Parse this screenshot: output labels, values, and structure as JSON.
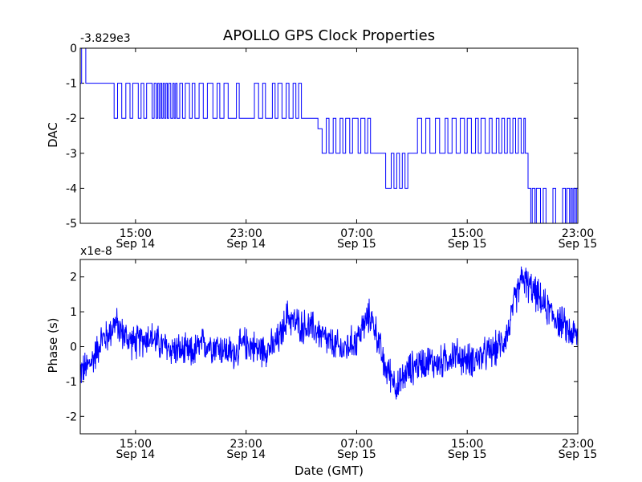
{
  "figure": {
    "title": "APOLLO GPS Clock Properties",
    "shared_xlabel": "Date (GMT)",
    "background": "#ffffff",
    "line_color": "#0000ff"
  },
  "chart_data": [
    {
      "type": "line",
      "ylabel": "DAC",
      "offset_text": "-3.829e3",
      "xlim": [
        0,
        36
      ],
      "ylim": [
        -5,
        0
      ],
      "x_ticks": [
        {
          "x": 4,
          "time": "15:00",
          "date": "Sep 14"
        },
        {
          "x": 12,
          "time": "23:00",
          "date": "Sep 14"
        },
        {
          "x": 20,
          "time": "07:00",
          "date": "Sep 15"
        },
        {
          "x": 28,
          "time": "15:00",
          "date": "Sep 15"
        },
        {
          "x": 36,
          "time": "23:00",
          "date": "Sep 15"
        }
      ],
      "y_ticks": [
        0,
        -1,
        -2,
        -3,
        -4,
        -5
      ],
      "y_tick_labels": [
        "0",
        "-1",
        "-2",
        "-3",
        "-4",
        "-5"
      ],
      "series": [
        {
          "step_points": [
            [
              0.0,
              -1
            ],
            [
              0.1,
              0
            ],
            [
              0.4,
              -1
            ],
            [
              2.2,
              -1
            ],
            [
              2.45,
              -2
            ],
            [
              2.7,
              -1
            ],
            [
              3.0,
              -2
            ],
            [
              3.3,
              -1
            ],
            [
              3.6,
              -2
            ],
            [
              3.8,
              -1
            ],
            [
              4.2,
              -2
            ],
            [
              4.4,
              -1
            ],
            [
              4.6,
              -2
            ],
            [
              4.8,
              -1
            ],
            [
              5.2,
              -2
            ],
            [
              5.35,
              -1
            ],
            [
              5.5,
              -2
            ],
            [
              5.6,
              -1
            ],
            [
              5.7,
              -2
            ],
            [
              5.8,
              -1
            ],
            [
              5.9,
              -2
            ],
            [
              6.0,
              -1
            ],
            [
              6.1,
              -2
            ],
            [
              6.2,
              -1
            ],
            [
              6.3,
              -2
            ],
            [
              6.4,
              -1
            ],
            [
              6.55,
              -2
            ],
            [
              6.7,
              -1
            ],
            [
              6.8,
              -2
            ],
            [
              6.9,
              -1
            ],
            [
              7.0,
              -2
            ],
            [
              7.2,
              -1
            ],
            [
              7.4,
              -2
            ],
            [
              7.6,
              -1
            ],
            [
              7.9,
              -2
            ],
            [
              8.1,
              -1
            ],
            [
              8.3,
              -2
            ],
            [
              8.6,
              -1
            ],
            [
              8.9,
              -2
            ],
            [
              9.2,
              -1
            ],
            [
              9.6,
              -2
            ],
            [
              9.9,
              -1
            ],
            [
              10.1,
              -2
            ],
            [
              10.4,
              -1
            ],
            [
              10.7,
              -2
            ],
            [
              11.3,
              -1
            ],
            [
              11.5,
              -2
            ],
            [
              12.6,
              -1
            ],
            [
              12.9,
              -2
            ],
            [
              13.2,
              -1
            ],
            [
              13.4,
              -2
            ],
            [
              13.9,
              -1
            ],
            [
              14.1,
              -2
            ],
            [
              14.3,
              -1
            ],
            [
              14.6,
              -2
            ],
            [
              14.9,
              -1
            ],
            [
              15.1,
              -2
            ],
            [
              15.4,
              -1
            ],
            [
              15.6,
              -2
            ],
            [
              15.8,
              -1
            ],
            [
              16.0,
              -2
            ],
            [
              17.2,
              -2.3
            ],
            [
              17.5,
              -3
            ],
            [
              17.8,
              -2
            ],
            [
              18.0,
              -3
            ],
            [
              18.3,
              -2
            ],
            [
              18.5,
              -3
            ],
            [
              18.8,
              -2
            ],
            [
              19.0,
              -3
            ],
            [
              19.2,
              -2
            ],
            [
              19.5,
              -3
            ],
            [
              19.7,
              -2
            ],
            [
              20.1,
              -3
            ],
            [
              20.3,
              -2
            ],
            [
              20.6,
              -3
            ],
            [
              20.8,
              -2
            ],
            [
              21.0,
              -3
            ],
            [
              22.0,
              -3
            ],
            [
              22.1,
              -4
            ],
            [
              22.5,
              -3
            ],
            [
              22.7,
              -4
            ],
            [
              22.9,
              -3
            ],
            [
              23.1,
              -4
            ],
            [
              23.3,
              -3
            ],
            [
              23.5,
              -4
            ],
            [
              23.7,
              -3
            ],
            [
              24.0,
              -3
            ],
            [
              24.3,
              -3
            ],
            [
              24.4,
              -2
            ],
            [
              24.7,
              -3
            ],
            [
              25.0,
              -2
            ],
            [
              25.3,
              -3
            ],
            [
              25.7,
              -2
            ],
            [
              26.0,
              -3
            ],
            [
              26.4,
              -2
            ],
            [
              26.6,
              -3
            ],
            [
              26.9,
              -2
            ],
            [
              27.2,
              -3
            ],
            [
              27.5,
              -2
            ],
            [
              27.8,
              -3
            ],
            [
              28.0,
              -2
            ],
            [
              28.3,
              -3
            ],
            [
              28.6,
              -2
            ],
            [
              28.8,
              -3
            ],
            [
              29.0,
              -2
            ],
            [
              29.3,
              -3
            ],
            [
              29.6,
              -2
            ],
            [
              29.8,
              -3
            ],
            [
              30.1,
              -2
            ],
            [
              30.3,
              -3
            ],
            [
              30.5,
              -2
            ],
            [
              30.7,
              -3
            ],
            [
              30.9,
              -2
            ],
            [
              31.1,
              -3
            ],
            [
              31.3,
              -2
            ],
            [
              31.5,
              -3
            ],
            [
              31.7,
              -2
            ],
            [
              31.9,
              -3
            ],
            [
              32.1,
              -2
            ],
            [
              32.2,
              -3
            ],
            [
              32.4,
              -4
            ],
            [
              32.6,
              -5
            ],
            [
              32.7,
              -4
            ],
            [
              32.9,
              -5
            ],
            [
              33.0,
              -4
            ],
            [
              33.3,
              -5
            ],
            [
              33.5,
              -4
            ],
            [
              33.7,
              -5
            ],
            [
              34.2,
              -4
            ],
            [
              34.4,
              -5
            ],
            [
              34.9,
              -4
            ],
            [
              35.1,
              -5
            ],
            [
              35.2,
              -4
            ],
            [
              35.4,
              -5
            ],
            [
              35.5,
              -4
            ],
            [
              35.6,
              -5
            ],
            [
              35.7,
              -4
            ],
            [
              35.8,
              -5
            ],
            [
              35.9,
              -4
            ],
            [
              36.0,
              -4
            ]
          ]
        }
      ]
    },
    {
      "type": "line",
      "ylabel": "Phase (s)",
      "offset_text": "x1e-8",
      "xlim": [
        0,
        36
      ],
      "ylim": [
        -2.5,
        2.5
      ],
      "x_ticks": [
        {
          "x": 4,
          "time": "15:00",
          "date": "Sep 14"
        },
        {
          "x": 12,
          "time": "23:00",
          "date": "Sep 14"
        },
        {
          "x": 20,
          "time": "07:00",
          "date": "Sep 15"
        },
        {
          "x": 28,
          "time": "15:00",
          "date": "Sep 15"
        },
        {
          "x": 36,
          "time": "23:00",
          "date": "Sep 15"
        }
      ],
      "y_ticks": [
        -2,
        -1,
        0,
        1,
        2
      ],
      "y_tick_labels": [
        "-2",
        "-1",
        "0",
        "1",
        "2"
      ],
      "series": [
        {
          "trend_points": [
            [
              0.0,
              -0.7
            ],
            [
              0.5,
              -0.6
            ],
            [
              1.0,
              -0.3
            ],
            [
              1.5,
              0.2
            ],
            [
              2.0,
              0.3
            ],
            [
              2.5,
              0.7
            ],
            [
              3.0,
              0.4
            ],
            [
              3.5,
              0.2
            ],
            [
              4.0,
              0.1
            ],
            [
              4.5,
              0.2
            ],
            [
              5.0,
              0.3
            ],
            [
              6.0,
              0.0
            ],
            [
              7.0,
              -0.1
            ],
            [
              8.0,
              -0.2
            ],
            [
              9.0,
              0.1
            ],
            [
              10.0,
              0.0
            ],
            [
              11.0,
              -0.2
            ],
            [
              12.0,
              0.1
            ],
            [
              13.0,
              -0.1
            ],
            [
              14.0,
              0.0
            ],
            [
              14.5,
              0.3
            ],
            [
              15.0,
              0.9
            ],
            [
              15.5,
              0.7
            ],
            [
              16.0,
              0.6
            ],
            [
              17.0,
              0.5
            ],
            [
              17.5,
              0.3
            ],
            [
              18.0,
              0.1
            ],
            [
              19.0,
              -0.1
            ],
            [
              20.0,
              0.2
            ],
            [
              20.5,
              0.6
            ],
            [
              21.0,
              0.9
            ],
            [
              21.5,
              0.3
            ],
            [
              22.0,
              -0.6
            ],
            [
              22.5,
              -0.8
            ],
            [
              23.0,
              -1.2
            ],
            [
              23.5,
              -0.8
            ],
            [
              24.0,
              -0.6
            ],
            [
              25.0,
              -0.4
            ],
            [
              26.0,
              -0.5
            ],
            [
              27.0,
              -0.2
            ],
            [
              28.0,
              -0.4
            ],
            [
              29.0,
              -0.3
            ],
            [
              30.0,
              -0.1
            ],
            [
              30.5,
              0.1
            ],
            [
              31.0,
              0.5
            ],
            [
              31.5,
              1.4
            ],
            [
              32.0,
              2.0
            ],
            [
              32.5,
              1.7
            ],
            [
              33.0,
              1.5
            ],
            [
              33.5,
              1.2
            ],
            [
              34.0,
              1.0
            ],
            [
              34.5,
              0.8
            ],
            [
              35.0,
              0.6
            ],
            [
              35.5,
              0.4
            ],
            [
              36.0,
              0.3
            ]
          ],
          "noise_amplitude": 0.6
        }
      ]
    }
  ]
}
